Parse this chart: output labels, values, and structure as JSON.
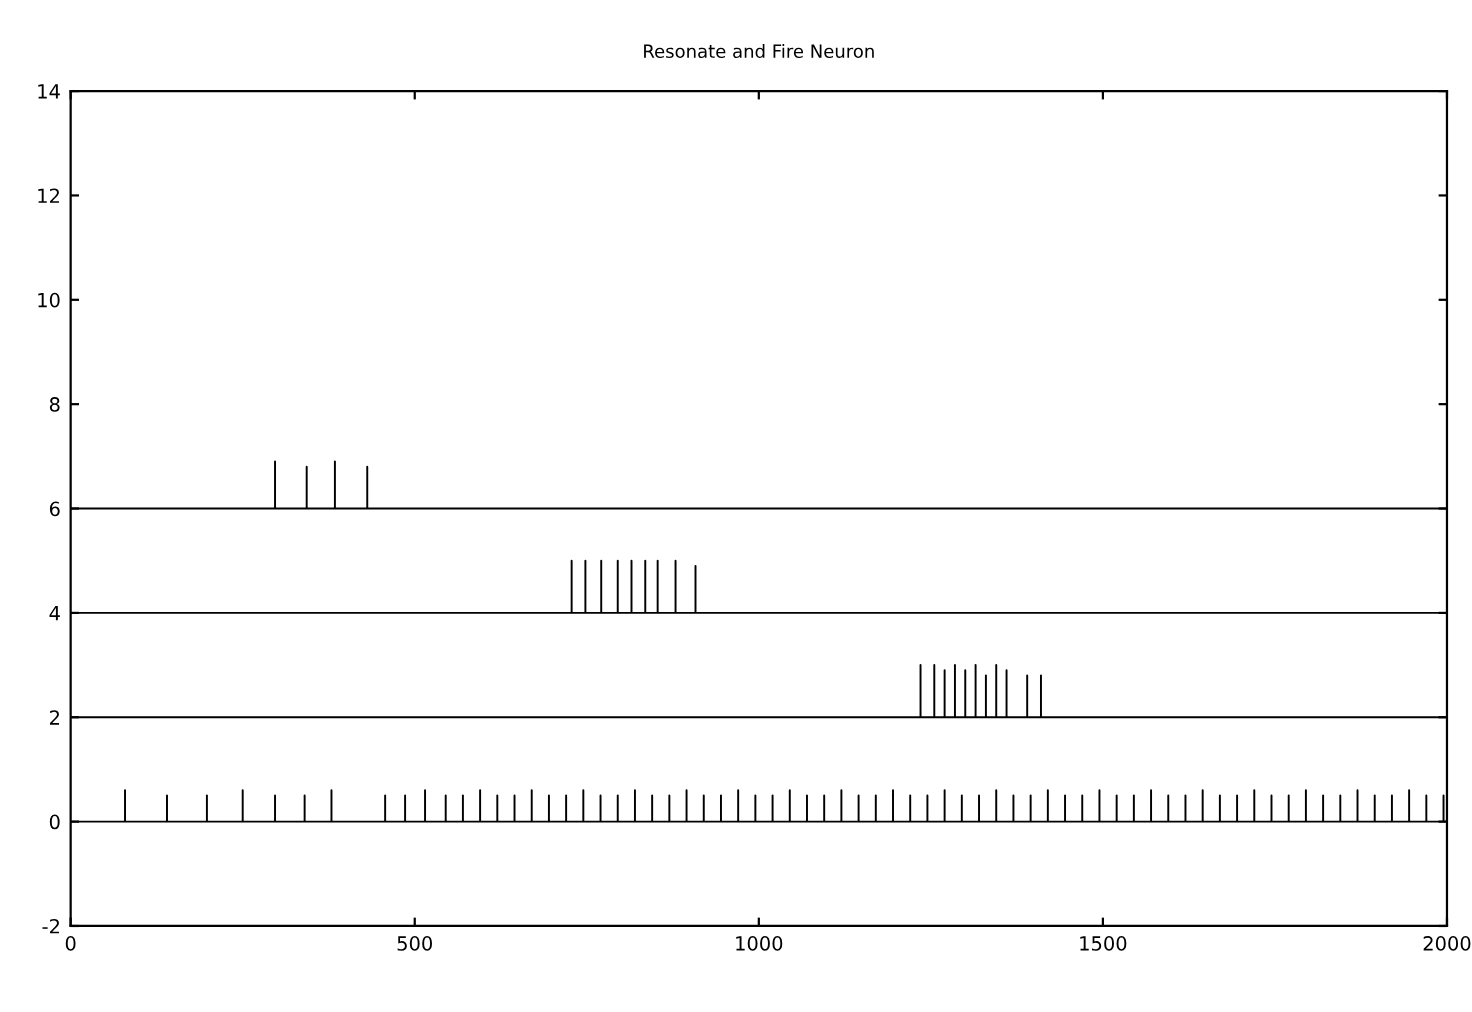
{
  "chart_data": {
    "type": "line",
    "title": "Resonate and Fire Neuron",
    "xlim": [
      0,
      2000
    ],
    "ylim": [
      -2,
      14
    ],
    "xticks": [
      0,
      500,
      1000,
      1500,
      2000
    ],
    "yticks": [
      -2,
      0,
      2,
      4,
      6,
      8,
      10,
      12,
      14
    ],
    "grid": false,
    "legend": false,
    "marker": "none",
    "line_style": "solid",
    "series": [
      {
        "color": "#000000",
        "x": [
          0,
          297,
          297,
          297,
          343,
          343,
          343,
          384,
          384,
          384,
          431,
          431,
          431,
          2000
        ],
        "values": [
          6,
          6,
          6.9,
          6,
          6,
          6.8,
          6,
          6,
          6.9,
          6,
          6,
          6.8,
          6,
          6
        ]
      },
      {
        "color": "#000000",
        "x": [
          0,
          728,
          728,
          728,
          748,
          748,
          748,
          771,
          771,
          771,
          795,
          795,
          795,
          815,
          815,
          815,
          835,
          835,
          835,
          853,
          853,
          853,
          879,
          879,
          879,
          908,
          908,
          908,
          2000
        ],
        "values": [
          4,
          4,
          5,
          4,
          4,
          5,
          4,
          4,
          5,
          4,
          4,
          5,
          4,
          4,
          5,
          4,
          4,
          5,
          4,
          4,
          5,
          4,
          4,
          5,
          4,
          4,
          4.9,
          4,
          4
        ]
      },
      {
        "color": "#000000",
        "x": [
          0,
          1235,
          1235,
          1235,
          1255,
          1255,
          1255,
          1270,
          1270,
          1270,
          1285,
          1285,
          1285,
          1300,
          1300,
          1300,
          1315,
          1315,
          1315,
          1330,
          1330,
          1330,
          1345,
          1345,
          1345,
          1360,
          1360,
          1360,
          1390,
          1390,
          1390,
          1410,
          1410,
          1410,
          2000
        ],
        "values": [
          2,
          2,
          3,
          2,
          2,
          3,
          2,
          2,
          2.9,
          2,
          2,
          3,
          2,
          2,
          2.9,
          2,
          2,
          3,
          2,
          2,
          2.8,
          2,
          2,
          3,
          2,
          2,
          2.9,
          2,
          2,
          2.8,
          2,
          2,
          2.8,
          2,
          2
        ]
      },
      {
        "color": "#000000",
        "x": [
          0,
          79,
          79,
          79,
          140,
          140,
          140,
          198,
          198,
          198,
          250,
          250,
          250,
          297,
          297,
          297,
          340,
          340,
          340,
          379,
          379,
          379,
          457,
          457,
          457,
          486,
          486,
          486,
          515,
          515,
          515,
          545,
          545,
          545,
          570,
          570,
          570,
          595,
          595,
          595,
          620,
          620,
          620,
          645,
          645,
          645,
          670,
          670,
          670,
          695,
          695,
          695,
          720,
          720,
          720,
          745,
          745,
          745,
          770,
          770,
          770,
          795,
          795,
          795,
          820,
          820,
          820,
          845,
          845,
          845,
          870,
          870,
          870,
          895,
          895,
          895,
          920,
          920,
          920,
          945,
          945,
          945,
          970,
          970,
          970,
          995,
          995,
          995,
          1020,
          1020,
          1020,
          1045,
          1045,
          1045,
          1070,
          1070,
          1070,
          1095,
          1095,
          1095,
          1120,
          1120,
          1120,
          1145,
          1145,
          1145,
          1170,
          1170,
          1170,
          1195,
          1195,
          1195,
          1220,
          1220,
          1220,
          1245,
          1245,
          1245,
          1270,
          1270,
          1270,
          1295,
          1295,
          1295,
          1320,
          1320,
          1320,
          1345,
          1345,
          1345,
          1370,
          1370,
          1370,
          1395,
          1395,
          1395,
          1420,
          1420,
          1420,
          1445,
          1445,
          1445,
          1470,
          1470,
          1470,
          1495,
          1495,
          1495,
          1520,
          1520,
          1520,
          1545,
          1545,
          1545,
          1570,
          1570,
          1570,
          1595,
          1595,
          1595,
          1620,
          1620,
          1620,
          1645,
          1645,
          1645,
          1670,
          1670,
          1670,
          1695,
          1695,
          1695,
          1720,
          1720,
          1720,
          1745,
          1745,
          1745,
          1770,
          1770,
          1770,
          1795,
          1795,
          1795,
          1820,
          1820,
          1820,
          1845,
          1845,
          1845,
          1870,
          1870,
          1870,
          1895,
          1895,
          1895,
          1920,
          1920,
          1920,
          1945,
          1945,
          1945,
          1970,
          1970,
          1970,
          1995,
          1995,
          1995,
          2000
        ],
        "values": [
          0,
          0,
          0.6,
          0,
          0,
          0.5,
          0,
          0,
          0.5,
          0,
          0,
          0.6,
          0,
          0,
          0.5,
          0,
          0,
          0.5,
          0,
          0,
          0.6,
          0,
          0,
          0.5,
          0,
          0,
          0.5,
          0,
          0,
          0.6,
          0,
          0,
          0.5,
          0,
          0,
          0.5,
          0,
          0,
          0.6,
          0,
          0,
          0.5,
          0,
          0,
          0.5,
          0,
          0,
          0.6,
          0,
          0,
          0.5,
          0,
          0,
          0.5,
          0,
          0,
          0.6,
          0,
          0,
          0.5,
          0,
          0,
          0.5,
          0,
          0,
          0.6,
          0,
          0,
          0.5,
          0,
          0,
          0.5,
          0,
          0,
          0.6,
          0,
          0,
          0.5,
          0,
          0,
          0.5,
          0,
          0,
          0.6,
          0,
          0,
          0.5,
          0,
          0,
          0.5,
          0,
          0,
          0.6,
          0,
          0,
          0.5,
          0,
          0,
          0.5,
          0,
          0,
          0.6,
          0,
          0,
          0.5,
          0,
          0,
          0.5,
          0,
          0,
          0.6,
          0,
          0,
          0.5,
          0,
          0,
          0.5,
          0,
          0,
          0.6,
          0,
          0,
          0.5,
          0,
          0,
          0.5,
          0,
          0,
          0.6,
          0,
          0,
          0.5,
          0,
          0,
          0.5,
          0,
          0,
          0.6,
          0,
          0,
          0.5,
          0,
          0,
          0.5,
          0,
          0,
          0.6,
          0,
          0,
          0.5,
          0,
          0,
          0.5,
          0,
          0,
          0.6,
          0,
          0,
          0.5,
          0,
          0,
          0.5,
          0,
          0,
          0.6,
          0,
          0,
          0.5,
          0,
          0,
          0.5,
          0,
          0,
          0.6,
          0,
          0,
          0.5,
          0,
          0,
          0.5,
          0,
          0,
          0.6,
          0,
          0,
          0.5,
          0,
          0,
          0.5,
          0,
          0,
          0.6,
          0,
          0,
          0.5,
          0,
          0,
          0.5,
          0,
          0,
          0.6,
          0,
          0,
          0.5,
          0,
          0,
          0.5,
          0,
          0
        ]
      }
    ]
  }
}
